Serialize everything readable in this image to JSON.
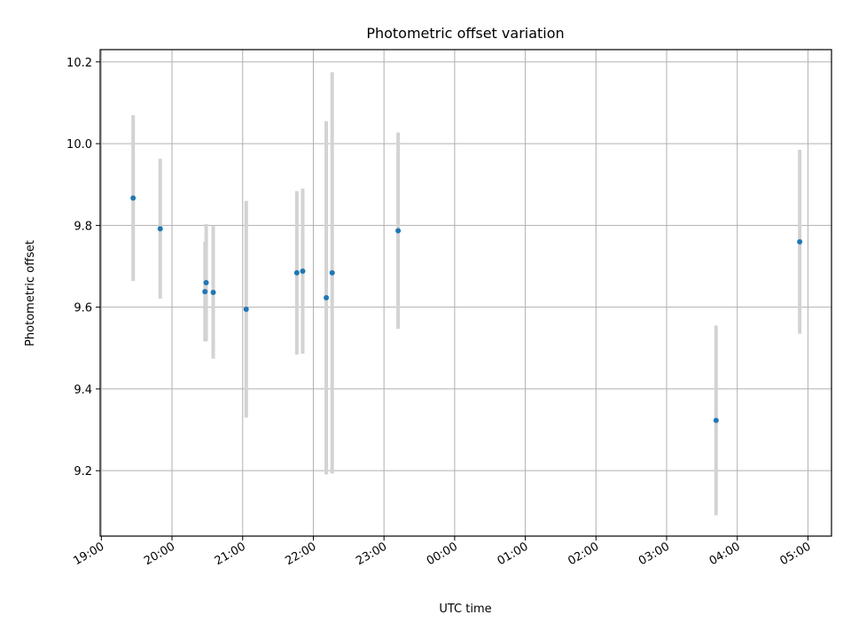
{
  "chart_data": {
    "type": "scatter",
    "title": "Photometric offset variation",
    "xlabel": "UTC time",
    "ylabel": "Photometric offset",
    "x_axis_kind": "time",
    "xlim": [
      "18:59",
      "05:20"
    ],
    "ylim": [
      9.04,
      10.23
    ],
    "x_ticks": [
      "19:00",
      "20:00",
      "21:00",
      "22:00",
      "23:00",
      "00:00",
      "01:00",
      "02:00",
      "03:00",
      "04:00",
      "05:00"
    ],
    "y_ticks": [
      9.2,
      9.4,
      9.6,
      9.8,
      10.0,
      10.2
    ],
    "y_tick_labels": [
      "9.2",
      "9.4",
      "9.6",
      "9.8",
      "10.0",
      "10.2"
    ],
    "grid": true,
    "marker_color": "#1f77b4",
    "errorbar_color": "#d3d3d3",
    "points": [
      {
        "time": "19:27",
        "y": 9.867,
        "err": 0.203
      },
      {
        "time": "19:50",
        "y": 9.792,
        "err": 0.171
      },
      {
        "time": "20:28",
        "y": 9.638,
        "err": 0.122
      },
      {
        "time": "20:29",
        "y": 9.66,
        "err": 0.143
      },
      {
        "time": "20:35",
        "y": 9.636,
        "err": 0.162
      },
      {
        "time": "21:03",
        "y": 9.595,
        "err": 0.265
      },
      {
        "time": "21:46",
        "y": 9.684,
        "err": 0.2
      },
      {
        "time": "21:51",
        "y": 9.688,
        "err": 0.202
      },
      {
        "time": "22:11",
        "y": 9.623,
        "err": 0.432
      },
      {
        "time": "22:16",
        "y": 9.684,
        "err": 0.491
      },
      {
        "time": "23:12",
        "y": 9.787,
        "err": 0.24
      },
      {
        "time": "03:42",
        "y": 9.323,
        "err": 0.232
      },
      {
        "time": "04:53",
        "y": 9.76,
        "err": 0.225
      }
    ]
  }
}
